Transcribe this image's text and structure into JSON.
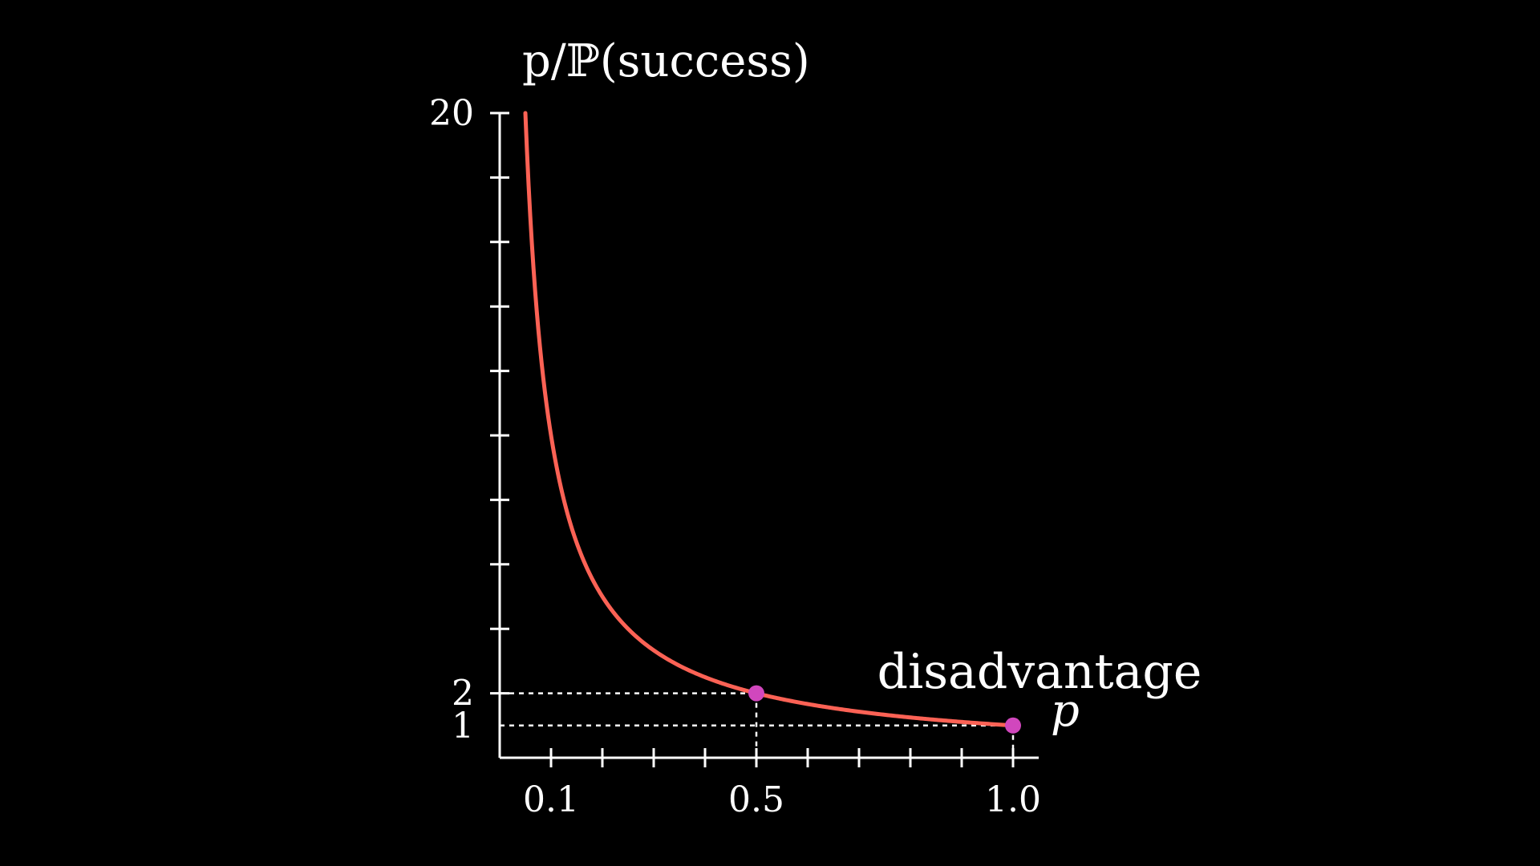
{
  "chart_data": {
    "type": "line",
    "title": "",
    "ylabel": "p/ℙ(success)",
    "xlabel": "p",
    "xlim": [
      0,
      1.05
    ],
    "ylim": [
      0,
      20
    ],
    "x_ticks": [
      0.1,
      0.2,
      0.3,
      0.4,
      0.5,
      0.6,
      0.7,
      0.8,
      0.9,
      1.0
    ],
    "x_tick_labels": [
      {
        "x": 0.1,
        "label": "0.1"
      },
      {
        "x": 0.5,
        "label": "0.5"
      },
      {
        "x": 1.0,
        "label": "1.0"
      }
    ],
    "y_ticks": [
      2,
      4,
      6,
      8,
      10,
      12,
      14,
      16,
      18,
      20
    ],
    "y_tick_labels": [
      {
        "y": 20,
        "label": "20"
      },
      {
        "y": 2,
        "label": "2"
      },
      {
        "y": 1,
        "label": "1"
      }
    ],
    "series": [
      {
        "name": "disadvantage",
        "color": "#FC6255",
        "function": "1/p",
        "x": [
          0.05,
          0.06,
          0.07,
          0.08,
          0.1,
          0.12,
          0.15,
          0.2,
          0.25,
          0.3,
          0.4,
          0.5,
          0.6,
          0.7,
          0.8,
          0.9,
          1.0
        ],
        "y": [
          20,
          16.67,
          14.29,
          12.5,
          10,
          8.33,
          6.67,
          5,
          4,
          3.33,
          2.5,
          2,
          1.67,
          1.43,
          1.25,
          1.11,
          1
        ]
      }
    ],
    "highlight_points": [
      {
        "x": 0.5,
        "y": 2,
        "color": "#D147BD"
      },
      {
        "x": 1.0,
        "y": 1,
        "color": "#D147BD"
      }
    ],
    "guide_line_color": "#FFFFFF",
    "grid": false,
    "legend": "none"
  }
}
